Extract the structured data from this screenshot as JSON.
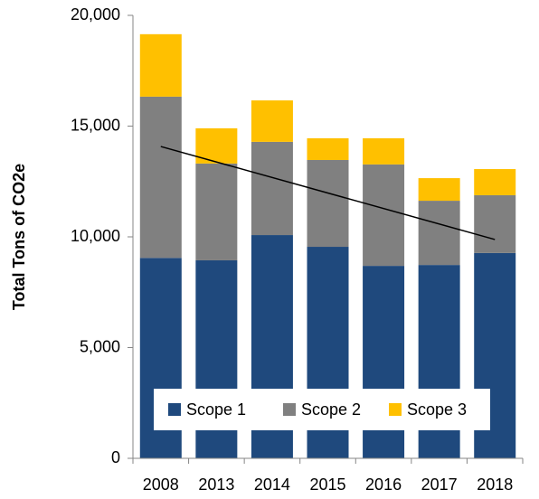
{
  "chart_data": {
    "type": "stacked_bar",
    "y_axis_label": "Total Tons of CO2e",
    "categories": [
      "2008",
      "2013",
      "2014",
      "2015",
      "2016",
      "2017",
      "2018"
    ],
    "series": [
      {
        "name": "Scope 1",
        "color": "#1f497d",
        "values": [
          9050,
          8940,
          10080,
          9550,
          8690,
          8730,
          9270
        ]
      },
      {
        "name": "Scope 2",
        "color": "#808080",
        "values": [
          7280,
          4370,
          4210,
          3920,
          4580,
          2900,
          2610
        ]
      },
      {
        "name": "Scope 3",
        "color": "#ffc000",
        "values": [
          2820,
          1590,
          1870,
          980,
          1180,
          1020,
          1180
        ]
      }
    ],
    "trend_line": {
      "color": "#000000",
      "values": [
        14080,
        9880
      ]
    },
    "ylim": [
      0,
      20000
    ],
    "yticks": [
      0,
      {
        "value": 5000,
        "label": "5,000"
      },
      {
        "value": 10000,
        "label": "10,000"
      },
      {
        "value": 15000,
        "label": "15,000"
      },
      {
        "value": 20000,
        "label": "20,000"
      }
    ],
    "legend": "bottom"
  }
}
